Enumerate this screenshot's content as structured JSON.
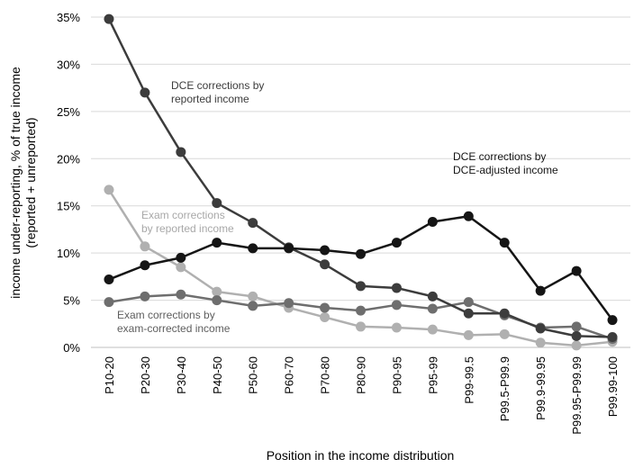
{
  "chart_data": {
    "type": "line",
    "xlabel": "Position in the income distribution",
    "ylabel": [
      "income under-reporting, % of true income",
      "(reported + unreported)"
    ],
    "ylim": [
      0,
      35
    ],
    "yticks": [
      0,
      5,
      10,
      15,
      20,
      25,
      30,
      35
    ],
    "ytick_labels": [
      "0%",
      "5%",
      "10%",
      "15%",
      "20%",
      "25%",
      "30%",
      "35%"
    ],
    "grid": "horizontal",
    "categories": [
      "P10-20",
      "P20-30",
      "P30-40",
      "P40-50",
      "P50-60",
      "P60-70",
      "P70-80",
      "P80-90",
      "P90-95",
      "P95-99",
      "P99-99.5",
      "P99.5-P99.9",
      "P99.9-99.95",
      "P99.95-P99.99",
      "P99.99-100"
    ],
    "series": [
      {
        "name": "DCE corrections by reported income",
        "label_lines": [
          "DCE corrections by",
          "reported income"
        ],
        "color": "#3c3c3c",
        "values": [
          34.8,
          27.0,
          20.7,
          15.3,
          13.2,
          10.6,
          8.8,
          6.5,
          6.3,
          5.4,
          3.6,
          3.6,
          2.0,
          1.2,
          1.1
        ]
      },
      {
        "name": "DCE corrections by DCE-adjusted income",
        "label_lines": [
          "DCE corrections by",
          "DCE-adjusted income"
        ],
        "color": "#151515",
        "values": [
          7.2,
          8.7,
          9.5,
          11.1,
          10.5,
          10.5,
          10.3,
          9.9,
          11.1,
          13.3,
          13.9,
          11.1,
          6.0,
          8.1,
          2.9
        ]
      },
      {
        "name": "Exam corrections by reported income",
        "label_lines": [
          "Exam corrections",
          "by reported income"
        ],
        "color": "#b0b0b0",
        "values": [
          16.7,
          10.7,
          8.5,
          5.9,
          5.4,
          4.2,
          3.2,
          2.2,
          2.1,
          1.9,
          1.3,
          1.4,
          0.5,
          0.2,
          0.6
        ]
      },
      {
        "name": "Exam corrections by exam-corrected income",
        "label_lines": [
          "Exam corrections by",
          "exam-corrected income"
        ],
        "color": "#6e6e6e",
        "values": [
          4.8,
          5.4,
          5.6,
          5.0,
          4.4,
          4.7,
          4.2,
          3.9,
          4.5,
          4.1,
          4.8,
          3.4,
          2.1,
          2.2,
          0.9
        ]
      }
    ]
  }
}
